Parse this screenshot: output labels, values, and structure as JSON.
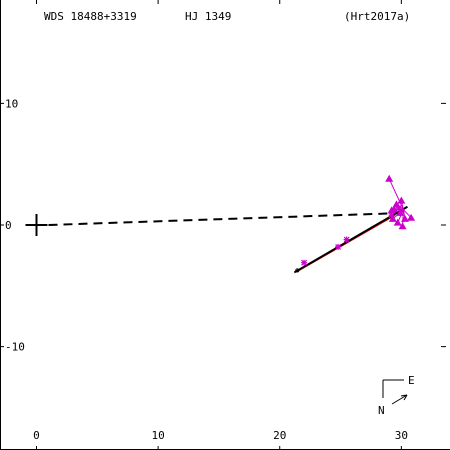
{
  "header": {
    "wds_id": "WDS 18488+3319",
    "discoverer": "HJ 1349",
    "reference": "(Hrt2017a)"
  },
  "compass": {
    "east_label": "E",
    "north_label": "N"
  },
  "colors": {
    "measure": "#cc00cc",
    "orbit": "#000000",
    "alt_orbit": "#dd0000",
    "axis": "#000000"
  },
  "chart_data": {
    "type": "scatter",
    "xlim": [
      -3,
      34
    ],
    "ylim": [
      -18.5,
      18.5
    ],
    "xticks": [
      0,
      10,
      20,
      30
    ],
    "yticks": [
      10,
      0,
      -10
    ],
    "xtick_labels": [
      "0",
      "10",
      "20",
      "30"
    ],
    "ytick_labels": [
      "10",
      "0",
      "-10"
    ],
    "primary": [
      0,
      0
    ],
    "dashed_line": {
      "from": [
        0,
        0
      ],
      "to": [
        30.5,
        1.0
      ]
    },
    "orbit": {
      "from": [
        21.2,
        -3.9
      ],
      "to": [
        30.5,
        1.5
      ]
    },
    "alt_orbit": {
      "from": [
        21.5,
        -3.8
      ],
      "to": [
        29.5,
        0.8
      ]
    },
    "measurements_star": [
      [
        22.0,
        -3.1
      ],
      [
        24.8,
        -1.8
      ],
      [
        25.5,
        -1.2
      ],
      [
        29.2,
        0.8
      ],
      [
        29.8,
        1.4
      ]
    ],
    "measurements_triangle": [
      [
        29.0,
        3.8
      ],
      [
        29.2,
        1.2
      ],
      [
        29.6,
        1.7
      ],
      [
        29.9,
        1.0
      ],
      [
        30.0,
        2.0
      ],
      [
        30.3,
        0.5
      ],
      [
        30.8,
        0.6
      ],
      [
        29.3,
        0.5
      ],
      [
        29.7,
        0.2
      ],
      [
        30.1,
        -0.1
      ],
      [
        29.4,
        1.3
      ]
    ]
  }
}
